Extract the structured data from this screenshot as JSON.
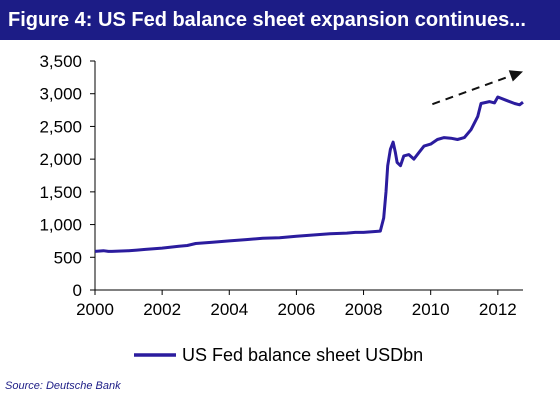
{
  "figure": {
    "title": "Figure 4: US Fed balance sheet expansion continues...",
    "source": "Source: Deutsche Bank"
  },
  "colors": {
    "title_bg": "#1c1c86",
    "series": "#2b1c9e",
    "axis": "#000000",
    "arrow": "#111111"
  },
  "chart_data": {
    "type": "line",
    "title": "",
    "xlabel": "",
    "ylabel": "",
    "xlim": [
      2000,
      2012.75
    ],
    "ylim": [
      0,
      3500
    ],
    "x_ticks": [
      2000,
      2002,
      2004,
      2006,
      2008,
      2010,
      2012
    ],
    "x_tick_labels": [
      "2000",
      "2002",
      "2004",
      "2006",
      "2008",
      "2010",
      "2012"
    ],
    "y_ticks": [
      0,
      500,
      1000,
      1500,
      2000,
      2500,
      3000,
      3500
    ],
    "y_tick_labels": [
      "0",
      "500",
      "1,000",
      "1,500",
      "2,000",
      "2,500",
      "3,000",
      "3,500"
    ],
    "grid": false,
    "legend_position": "bottom",
    "series": [
      {
        "name": "US Fed balance sheet USDbn",
        "x": [
          2000.0,
          2000.25,
          2000.4,
          2000.5,
          2001.0,
          2001.25,
          2001.5,
          2002.0,
          2002.5,
          2002.75,
          2003.0,
          2003.5,
          2004.0,
          2004.5,
          2005.0,
          2005.5,
          2006.0,
          2006.5,
          2007.0,
          2007.5,
          2007.75,
          2008.0,
          2008.25,
          2008.5,
          2008.6,
          2008.67,
          2008.72,
          2008.8,
          2008.88,
          2008.95,
          2009.0,
          2009.1,
          2009.2,
          2009.35,
          2009.5,
          2009.65,
          2009.8,
          2010.0,
          2010.2,
          2010.4,
          2010.6,
          2010.8,
          2011.0,
          2011.2,
          2011.4,
          2011.5,
          2011.75,
          2011.9,
          2012.0,
          2012.25,
          2012.5,
          2012.65,
          2012.75
        ],
        "y": [
          590,
          600,
          590,
          590,
          600,
          610,
          620,
          640,
          670,
          680,
          710,
          730,
          750,
          770,
          790,
          800,
          820,
          840,
          860,
          870,
          880,
          880,
          890,
          900,
          1100,
          1500,
          1900,
          2150,
          2260,
          2100,
          1950,
          1900,
          2050,
          2070,
          2000,
          2100,
          2200,
          2230,
          2300,
          2330,
          2320,
          2300,
          2330,
          2450,
          2650,
          2850,
          2880,
          2860,
          2950,
          2900,
          2850,
          2830,
          2870
        ]
      }
    ],
    "annotations": [
      {
        "type": "trend-arrow",
        "style": "dashed",
        "x": [
          2010.05,
          2012.75
        ],
        "y": [
          2840,
          3340
        ]
      }
    ]
  }
}
